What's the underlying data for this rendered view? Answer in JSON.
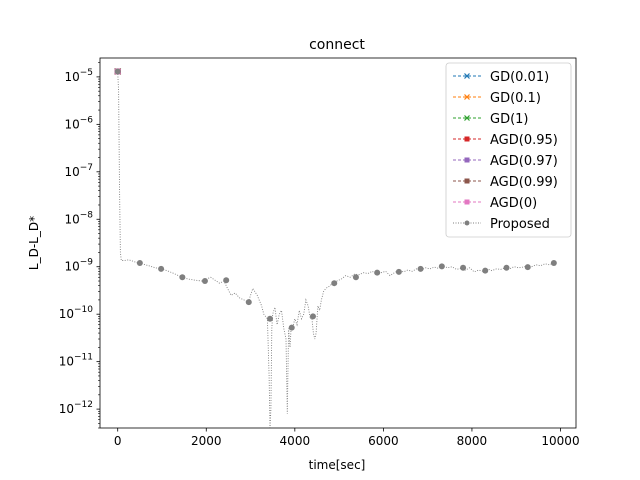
{
  "chart_data": {
    "type": "line",
    "title": "connect",
    "xlabel": "time[sec]",
    "ylabel": "L_D-L_D*",
    "yscale": "log",
    "xlim": [
      -400,
      10350
    ],
    "ylim": [
      4e-13,
      2.5e-05
    ],
    "xticks": [
      {
        "v": 0,
        "label": "0"
      },
      {
        "v": 2000,
        "label": "2000"
      },
      {
        "v": 4000,
        "label": "4000"
      },
      {
        "v": 6000,
        "label": "6000"
      },
      {
        "v": 8000,
        "label": "8000"
      },
      {
        "v": 10000,
        "label": "10000"
      }
    ],
    "yticks": [
      {
        "v": 1e-05,
        "base": "10",
        "exp": "−5"
      },
      {
        "v": 1e-06,
        "base": "10",
        "exp": "−6"
      },
      {
        "v": 1e-07,
        "base": "10",
        "exp": "−7"
      },
      {
        "v": 1e-08,
        "base": "10",
        "exp": "−8"
      },
      {
        "v": 1e-09,
        "base": "10",
        "exp": "−9"
      },
      {
        "v": 1e-10,
        "base": "10",
        "exp": "−10"
      },
      {
        "v": 1e-11,
        "base": "10",
        "exp": "−11"
      },
      {
        "v": 1e-12,
        "base": "10",
        "exp": "−12"
      }
    ],
    "legend_position": "upper right",
    "series": [
      {
        "name": "GD(0.01)",
        "color": "#1f77b4",
        "marker": "x",
        "linestyle": "dashed",
        "x": [
          0
        ],
        "y": [
          1.3e-05
        ]
      },
      {
        "name": "GD(0.1)",
        "color": "#ff7f0e",
        "marker": "x",
        "linestyle": "dashed",
        "x": [
          0
        ],
        "y": [
          1.3e-05
        ]
      },
      {
        "name": "GD(1)",
        "color": "#2ca02c",
        "marker": "x",
        "linestyle": "dashed",
        "x": [
          0
        ],
        "y": [
          1.3e-05
        ]
      },
      {
        "name": "AGD(0.95)",
        "color": "#d62728",
        "marker": "square",
        "linestyle": "dashed",
        "x": [
          0
        ],
        "y": [
          1.3e-05
        ]
      },
      {
        "name": "AGD(0.97)",
        "color": "#9467bd",
        "marker": "square",
        "linestyle": "dashed",
        "x": [
          0
        ],
        "y": [
          1.3e-05
        ]
      },
      {
        "name": "AGD(0.99)",
        "color": "#8c564b",
        "marker": "square",
        "linestyle": "dashed",
        "x": [
          0
        ],
        "y": [
          1.3e-05
        ]
      },
      {
        "name": "AGD(0)",
        "color": "#e377c2",
        "marker": "square",
        "linestyle": "dashed",
        "x": [
          0
        ],
        "y": [
          1.3e-05
        ]
      },
      {
        "name": "Proposed",
        "color": "#7f7f7f",
        "marker": "circle",
        "linestyle": "dotted",
        "line": {
          "x": [
            0,
            20,
            40,
            60,
            80,
            150,
            250,
            350,
            450,
            550,
            700,
            850,
            1000,
            1150,
            1300,
            1450,
            1600,
            1750,
            1900,
            2000,
            2100,
            2200,
            2300,
            2400,
            2480,
            2560,
            2650,
            2750,
            2850,
            2950,
            3050,
            3150,
            3250,
            3300,
            3380,
            3420,
            3440,
            3460,
            3480,
            3500,
            3550,
            3600,
            3650,
            3700,
            3750,
            3800,
            3830,
            3860,
            3890,
            3920,
            3950,
            4000,
            4050,
            4100,
            4150,
            4200,
            4250,
            4300,
            4350,
            4380,
            4420,
            4450,
            4480,
            4520,
            4560,
            4600,
            4650,
            4700,
            4800,
            4850,
            4950,
            5050,
            5150,
            5250,
            5350,
            5450,
            5550,
            5650,
            5750,
            5850,
            5950,
            6050,
            6150,
            6250,
            6350,
            6450,
            6550,
            6650,
            6750,
            6850,
            6950,
            7050,
            7150,
            7250,
            7350,
            7450,
            7550,
            7650,
            7750,
            7850,
            7950,
            8050,
            8150,
            8250,
            8350,
            8450,
            8550,
            8650,
            8750,
            8850,
            8950,
            9050,
            9150,
            9250,
            9350,
            9450,
            9550,
            9650,
            9750,
            9850
          ],
          "y": [
            1.3e-05,
            5e-06,
            5e-08,
            2e-09,
            1.35e-09,
            1.35e-09,
            1.4e-09,
            1.3e-09,
            1.2e-09,
            1.15e-09,
            1.05e-09,
            9.5e-10,
            9e-10,
            8e-10,
            7e-10,
            6e-10,
            5.5e-10,
            5.2e-10,
            5e-10,
            5.5e-10,
            6e-10,
            5.2e-10,
            4.5e-10,
            5e-10,
            3.5e-10,
            2.5e-10,
            2.8e-10,
            2.2e-10,
            2e-10,
            1.8e-10,
            3.5e-10,
            2.5e-10,
            1.5e-10,
            1e-10,
            8e-11,
            5e-12,
            2e-13,
            1e-12,
            5e-11,
            1e-10,
            1.4e-10,
            6e-11,
            1e-10,
            1.2e-10,
            5e-11,
            3e-11,
            8e-13,
            5e-11,
            2e-11,
            6e-11,
            5e-11,
            8e-11,
            6e-11,
            1.2e-10,
            8e-11,
            1e-10,
            2e-10,
            1.5e-10,
            8e-11,
            9e-11,
            4e-11,
            3e-11,
            4e-11,
            1.5e-10,
            1.2e-10,
            2e-10,
            3e-10,
            3.5e-10,
            4e-10,
            4.5e-10,
            5e-10,
            5.5e-10,
            6.5e-10,
            6e-10,
            7e-10,
            6.8e-10,
            7.5e-10,
            7.2e-10,
            8e-10,
            6.8e-10,
            7.5e-10,
            8e-10,
            6.5e-10,
            7.5e-10,
            8.5e-10,
            7.8e-10,
            8.5e-10,
            8e-10,
            9e-10,
            8.5e-10,
            9.5e-10,
            9e-10,
            9.8e-10,
            9.2e-10,
            1.05e-09,
            9.5e-10,
            1e-09,
            8.8e-10,
            9.2e-10,
            8.5e-10,
            9.5e-10,
            7.8e-10,
            8.5e-10,
            8e-10,
            9e-10,
            8.3e-10,
            9e-10,
            8.8e-10,
            9.5e-10,
            9e-10,
            1e-09,
            9.5e-10,
            9.8e-10,
            1.05e-09,
            1e-09,
            1.1e-09,
            1.05e-09,
            1.15e-09,
            1.1e-09,
            1.2e-09
          ]
        },
        "markers": {
          "x": [
            0,
            500,
            980,
            1460,
            1970,
            2450,
            2960,
            3440,
            3930,
            4410,
            4890,
            5380,
            5860,
            6350,
            6840,
            7320,
            7800,
            8300,
            8780,
            9260,
            9850
          ],
          "y": [
            1.3e-05,
            1.2e-09,
            9e-10,
            6e-10,
            5e-10,
            5.2e-10,
            1.8e-10,
            8e-11,
            5.2e-11,
            9e-11,
            4.5e-10,
            6e-10,
            7.5e-10,
            7.8e-10,
            9e-10,
            1.02e-09,
            9.5e-10,
            8.3e-10,
            9.5e-10,
            9.8e-10,
            1.2e-09
          ]
        }
      }
    ]
  }
}
